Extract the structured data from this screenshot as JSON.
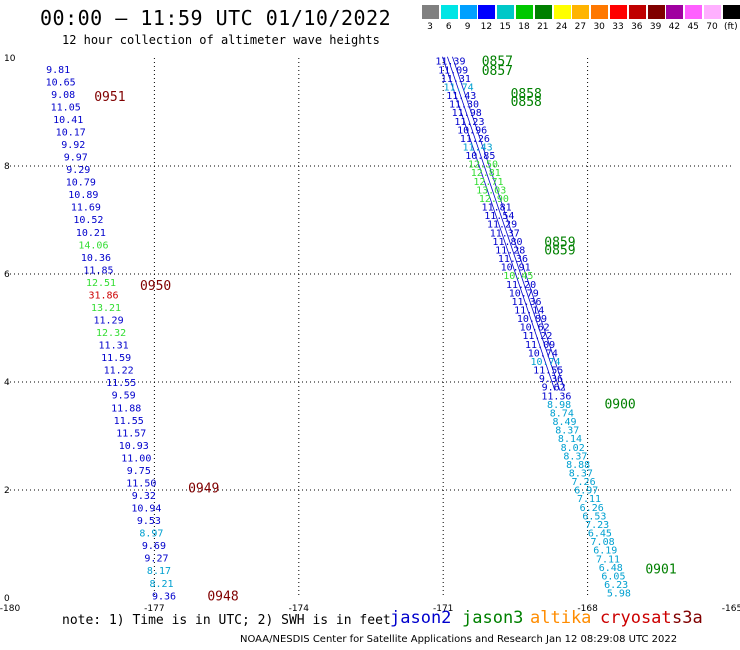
{
  "header": {
    "title": "00:00 – 11:59 UTC 01/10/2022",
    "subtitle": "12 hour collection of altimeter wave heights"
  },
  "colorscale": {
    "labels": [
      "3",
      "6",
      "9",
      "12",
      "15",
      "18",
      "21",
      "24",
      "27",
      "30",
      "33",
      "36",
      "39",
      "42",
      "45",
      "70",
      "(ft)"
    ],
    "colors": [
      "#808080",
      "#00e5e5",
      "#00a0ff",
      "#0000ff",
      "#00c8c8",
      "#00c800",
      "#008000",
      "#ffff00",
      "#ffb400",
      "#ff7800",
      "#ff0000",
      "#c00000",
      "#800000",
      "#a000a0",
      "#ff60ff",
      "#ffb0ff",
      "#000000"
    ]
  },
  "footer": {
    "note": "note:  1) Time is in UTC;  2) SWH is in feet",
    "credit": "NOAA/NESDIS Center for Satellite Applications and Research   Jan 12 08:29:08 UTC 2022"
  },
  "legend": [
    {
      "name": "jason2",
      "color": "#0000cc"
    },
    {
      "name": "jason3",
      "color": "#008000"
    },
    {
      "name": "altika",
      "color": "#ff8c00"
    },
    {
      "name": "cryosat",
      "color": "#cc0000"
    },
    {
      "name": "s3a",
      "color": "#800000"
    }
  ],
  "chart_data": {
    "type": "scatter",
    "xlim": [
      -180,
      -165
    ],
    "ylim": [
      0,
      10
    ],
    "xticks": [
      "-180",
      "-177",
      "-174",
      "-171",
      "-168",
      "-165"
    ],
    "yticks": [
      "0",
      "2",
      "4",
      "6",
      "8",
      "10"
    ],
    "grid": true,
    "track_left": {
      "x_top": -179.0,
      "x_bottom": -176.8,
      "y_top": 9.8,
      "y_bottom": 0.05,
      "values": [
        "9.81",
        "10.65",
        "9.08",
        "11.05",
        "10.41",
        "10.17",
        "9.92",
        "9.97",
        "9.29",
        "10.79",
        "10.89",
        "11.69",
        "10.52",
        "10.21",
        "14.06",
        "10.36",
        "11.85",
        "12.51",
        "31.86",
        "13.21",
        "11.29",
        "12.32",
        "11.31",
        "11.59",
        "11.22",
        "11.55",
        "9.59",
        "11.88",
        "11.55",
        "11.57",
        "10.93",
        "11.00",
        "9.75",
        "11.50",
        "9.32",
        "10.94",
        "9.53",
        "8.97",
        "9.69",
        "9.27",
        "8.17",
        "8.21",
        "9.36"
      ],
      "colors": [
        "#0000cc",
        "#0000cc",
        "#0000cc",
        "#0000cc",
        "#0000cc",
        "#0000cc",
        "#0000cc",
        "#0000cc",
        "#0000cc",
        "#0000cc",
        "#0000cc",
        "#0000cc",
        "#0000cc",
        "#0000cc",
        "#33dd33",
        "#0000cc",
        "#0000cc",
        "#33dd33",
        "#cc0000",
        "#33dd33",
        "#0000cc",
        "#33dd33",
        "#0000cc",
        "#0000cc",
        "#0000cc",
        "#0000cc",
        "#0000cc",
        "#0000cc",
        "#0000cc",
        "#0000cc",
        "#0000cc",
        "#0000cc",
        "#0000cc",
        "#0000cc",
        "#0000cc",
        "#0000cc",
        "#0000cc",
        "#00a0d0",
        "#0000cc",
        "#0000cc",
        "#00a0d0",
        "#00a0d0",
        "#0000cc"
      ],
      "times": [
        {
          "label": "0951",
          "x": -178.25,
          "y": 9.3
        },
        {
          "label": "0950",
          "x": -177.3,
          "y": 5.8
        },
        {
          "label": "0949",
          "x": -176.3,
          "y": 2.05
        },
        {
          "label": "0948",
          "x": -175.9,
          "y": 0.05
        }
      ]
    },
    "track_right": {
      "x_top": -170.85,
      "x_bottom": -167.35,
      "y_top": 9.95,
      "y_bottom": 0.1,
      "values": [
        "11.39",
        "11.09",
        "11.31",
        "11.74",
        "11.43",
        "11.30",
        "11.98",
        "11.23",
        "10.96",
        "11.26",
        "11.43",
        "10.85",
        "12.50",
        "12.81",
        "12.71",
        "13.03",
        "12.90",
        "11.81",
        "11.54",
        "11.29",
        "11.37",
        "11.80",
        "11.28",
        "11.36",
        "10.91",
        "10.45",
        "11.20",
        "10.79",
        "11.36",
        "11.14",
        "10.89",
        "10.62",
        "11.22",
        "11.09",
        "10.74",
        "10.74",
        "11.55",
        "9.36",
        "9.62",
        "11.36",
        "8.98",
        "8.74",
        "8.49",
        "8.37",
        "8.14",
        "8.02",
        "8.37",
        "8.88",
        "8.37",
        "7.26",
        "6.97",
        "7.11",
        "6.26",
        "6.53",
        "7.23",
        "6.45",
        "7.08",
        "6.19",
        "7.11",
        "6.48",
        "6.05",
        "6.23",
        "5.98"
      ],
      "colors": [
        "#0000cc",
        "#0000cc",
        "#0000cc",
        "#00a0d0",
        "#0000cc",
        "#0000cc",
        "#0000cc",
        "#0000cc",
        "#0000cc",
        "#0000cc",
        "#00a0d0",
        "#0000cc",
        "#33dd33",
        "#33dd33",
        "#33dd33",
        "#33dd33",
        "#33dd33",
        "#0000cc",
        "#0000cc",
        "#0000cc",
        "#0000cc",
        "#0000cc",
        "#0000cc",
        "#0000cc",
        "#0000cc",
        "#33dd33",
        "#0000cc",
        "#0000cc",
        "#0000cc",
        "#0000cc",
        "#0000cc",
        "#0000cc",
        "#0000cc",
        "#0000cc",
        "#0000cc",
        "#00a0d0",
        "#0000cc",
        "#0000cc",
        "#0000cc",
        "#0000cc",
        "#00a0d0",
        "#00a0d0",
        "#00a0d0",
        "#00a0d0",
        "#00a0d0",
        "#00a0d0",
        "#00a0d0",
        "#00a0d0",
        "#00a0d0",
        "#00a0d0",
        "#00a0d0",
        "#00a0d0",
        "#00a0d0",
        "#00a0d0",
        "#00a0d0",
        "#00a0d0",
        "#00a0d0",
        "#00a0d0",
        "#00a0d0",
        "#00a0d0",
        "#00a0d0",
        "#00a0d0",
        "#00a0d0"
      ],
      "times": [
        {
          "label": "0857",
          "x": -170.2,
          "y": 9.95
        },
        {
          "label": "0857",
          "x": -170.2,
          "y": 9.78
        },
        {
          "label": "0858",
          "x": -169.6,
          "y": 9.35
        },
        {
          "label": "0858",
          "x": -169.6,
          "y": 9.2
        },
        {
          "label": "0859",
          "x": -168.9,
          "y": 6.6
        },
        {
          "label": "0859",
          "x": -168.9,
          "y": 6.45
        },
        {
          "label": "0900",
          "x": -167.65,
          "y": 3.6
        },
        {
          "label": "0901",
          "x": -166.8,
          "y": 0.55
        }
      ]
    }
  }
}
